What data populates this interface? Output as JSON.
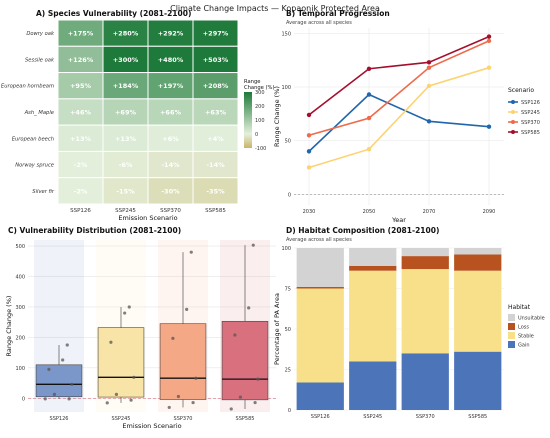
{
  "figure": {
    "title": "Climate Change Impacts — Kopaonik Protected Area"
  },
  "chart_data": [
    {
      "id": "A",
      "type": "heatmap",
      "title": "A) Species Vulnerability (2081-2100)",
      "xlabel": "Emission Scenario",
      "ylabel": "",
      "columns": [
        "SSP126",
        "SSP245",
        "SSP370",
        "SSP585"
      ],
      "rows": [
        "Dowry oak",
        "Sessile oak",
        "European hornbeam",
        "Ash_ Maple",
        "European beech",
        "Norway spruce",
        "Silver fir"
      ],
      "values": [
        [
          175,
          280,
          292,
          297
        ],
        [
          126,
          300,
          480,
          503
        ],
        [
          95,
          184,
          197,
          208
        ],
        [
          46,
          69,
          66,
          63
        ],
        [
          13,
          13,
          6,
          4
        ],
        [
          -2,
          -6,
          -14,
          -14
        ],
        [
          -2,
          -15,
          -30,
          -35
        ]
      ],
      "cell_labels": [
        [
          "+175%",
          "+280%",
          "+292%",
          "+297%"
        ],
        [
          "+126%",
          "+300%",
          "+480%",
          "+503%"
        ],
        [
          "+95%",
          "+184%",
          "+197%",
          "+208%"
        ],
        [
          "+46%",
          "+69%",
          "+66%",
          "+63%"
        ],
        [
          "+13%",
          "+13%",
          "+6%",
          "+4%"
        ],
        [
          "-2%",
          "-6%",
          "-14%",
          "-14%"
        ],
        [
          "-2%",
          "-15%",
          "-30%",
          "-35%"
        ]
      ],
      "legend": {
        "title": "Range Change (%)",
        "ticks": [
          "300",
          "200",
          "100",
          "0",
          "-100"
        ],
        "range": [
          -100,
          300
        ],
        "color_low": "#c9b36a",
        "color_mid": "#e4f0dc",
        "color_high": "#1e7a3a"
      }
    },
    {
      "id": "B",
      "type": "line",
      "title": "B) Temporal Progression",
      "subtitle": "Average across all species",
      "xlabel": "Year",
      "ylabel": "Range Change (%)",
      "x": [
        2030,
        2050,
        2070,
        2090
      ],
      "x_ticks": [
        "2030",
        "2050",
        "2070",
        "2090"
      ],
      "y_ticks": [
        "0",
        "50",
        "100",
        "150"
      ],
      "ylim": [
        -10,
        155
      ],
      "legend": {
        "title": "Scenario",
        "placement": "right"
      },
      "series": [
        {
          "name": "SSP126",
          "color": "#2166ac",
          "values": [
            40,
            93,
            68,
            63
          ]
        },
        {
          "name": "SSP245",
          "color": "#fdd372",
          "values": [
            25,
            42,
            101,
            118
          ]
        },
        {
          "name": "SSP370",
          "color": "#ef6a4a",
          "values": [
            55,
            71,
            118,
            143
          ]
        },
        {
          "name": "SSP585",
          "color": "#a50f2d",
          "values": [
            74,
            117,
            123,
            147
          ]
        }
      ]
    },
    {
      "id": "C",
      "type": "box",
      "title": "C) Vulnerability Distribution (2081-2100)",
      "xlabel": "Emission Scenario",
      "ylabel": "Range Change (%)",
      "categories": [
        "SSP126",
        "SSP245",
        "SSP370",
        "SSP585"
      ],
      "y_ticks": [
        "0",
        "100",
        "200",
        "300",
        "400",
        "500"
      ],
      "ylim": [
        -45,
        520
      ],
      "boxes": [
        {
          "name": "SSP126",
          "color": "#7b96c8",
          "min": -2,
          "q1": 5,
          "median": 46,
          "q3": 110,
          "max": 175,
          "points": [
            -2,
            -2,
            13,
            46,
            95,
            126,
            175
          ]
        },
        {
          "name": "SSP245",
          "color": "#f7e4a6",
          "min": -15,
          "q1": 4,
          "median": 69,
          "q3": 232,
          "max": 300,
          "points": [
            -15,
            -6,
            13,
            69,
            184,
            280,
            300
          ]
        },
        {
          "name": "SSP370",
          "color": "#f5a886",
          "min": -30,
          "q1": -4,
          "median": 66,
          "q3": 245,
          "max": 480,
          "points": [
            -30,
            -14,
            6,
            66,
            197,
            292,
            480
          ]
        },
        {
          "name": "SSP585",
          "color": "#d9707e",
          "min": -35,
          "q1": -5,
          "median": 63,
          "q3": 253,
          "max": 503,
          "points": [
            -35,
            -14,
            4,
            63,
            208,
            297,
            503
          ]
        }
      ]
    },
    {
      "id": "D",
      "type": "bar",
      "stacked": true,
      "title": "D) Habitat Composition (2081-2100)",
      "subtitle": "Average across all species",
      "xlabel": "",
      "ylabel": "Percentage of PA Area",
      "categories": [
        "SSP126",
        "SSP245",
        "SSP370",
        "SSP585"
      ],
      "y_ticks": [
        "0",
        "25",
        "50",
        "75",
        "100"
      ],
      "ylim": [
        0,
        100
      ],
      "legend": {
        "title": "Habitat",
        "placement": "right"
      },
      "series": [
        {
          "name": "Gain",
          "color": "#4b74b9",
          "values": [
            17,
            30,
            35,
            36
          ]
        },
        {
          "name": "Stable",
          "color": "#f8e08a",
          "values": [
            58,
            56,
            52,
            50
          ]
        },
        {
          "name": "Loss",
          "color": "#b8531f",
          "values": [
            1,
            3,
            8,
            10
          ]
        },
        {
          "name": "Unsuitable",
          "color": "#d3d3d3",
          "values": [
            24,
            11,
            5,
            4
          ]
        }
      ]
    }
  ]
}
